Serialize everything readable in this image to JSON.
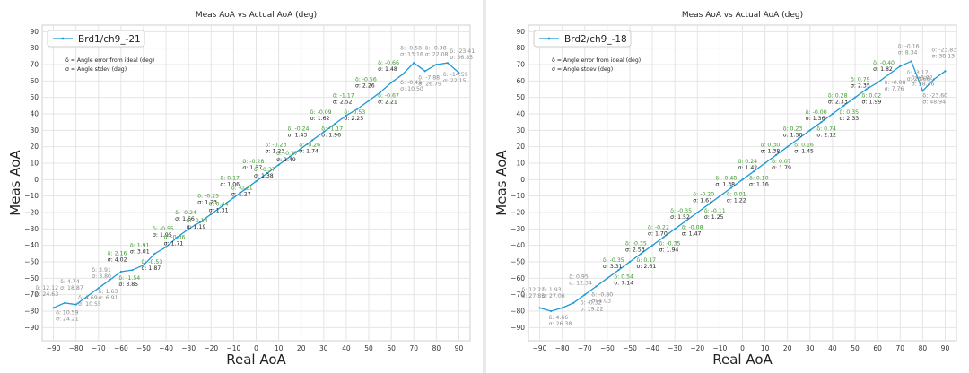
{
  "chart_data": [
    {
      "type": "line",
      "title": "Meas AoA vs Actual AoA (deg)",
      "xlabel": "Real AoA",
      "ylabel": "Meas AoA",
      "xlim": [
        -95,
        95
      ],
      "ylim": [
        -98,
        94
      ],
      "xticks": [
        -90,
        -80,
        -70,
        -60,
        -50,
        -40,
        -30,
        -20,
        -10,
        0,
        10,
        20,
        30,
        40,
        50,
        60,
        70,
        80,
        90
      ],
      "yticks": [
        -90,
        -80,
        -70,
        -60,
        -50,
        -40,
        -30,
        -20,
        -10,
        0,
        10,
        20,
        30,
        40,
        50,
        60,
        70,
        80,
        90
      ],
      "grid": true,
      "legend_position": "top-left",
      "colors": {
        "line": "#1f9ad6",
        "good": "#3a9a2a",
        "warn": "#8a8a8a",
        "ok": "#222222"
      },
      "series": [
        {
          "name": "Brd1/ch9_-21",
          "x": [
            -90,
            -85,
            -80,
            -75,
            -70,
            -65,
            -60,
            -55,
            -50,
            -45,
            -40,
            -35,
            -30,
            -25,
            -20,
            -15,
            -10,
            -5,
            0,
            5,
            10,
            15,
            20,
            25,
            30,
            35,
            40,
            45,
            50,
            55,
            60,
            65,
            70,
            75,
            80,
            85,
            90
          ],
          "y": [
            -78,
            -75,
            -76,
            -71,
            -66,
            -61,
            -56,
            -55,
            -52,
            -45,
            -41,
            -35,
            -30,
            -26,
            -21,
            -16,
            -11,
            -6,
            -1,
            4,
            9,
            14,
            19,
            24,
            29,
            34,
            39,
            43,
            48,
            53,
            59,
            64,
            71,
            66,
            70,
            71,
            65
          ]
        }
      ],
      "legend_notes": [
        "δ = Angle error from ideal (deg)",
        "σ = Angle stdev (deg)"
      ],
      "annotations": [
        {
          "d": "δ: 12.12",
          "s": "σ: 24.63",
          "x": -98,
          "y": -67,
          "c": "warn"
        },
        {
          "d": "δ: 4.74",
          "s": "σ: 18.87",
          "x": -87,
          "y": -63,
          "c": "warn"
        },
        {
          "d": "δ: 10.59",
          "s": "σ: 24.21",
          "x": -89,
          "y": -82,
          "c": "warn"
        },
        {
          "d": "δ: 4.69",
          "s": "σ: 10.55",
          "x": -79,
          "y": -73,
          "c": "warn"
        },
        {
          "d": "δ: 3.91",
          "s": "σ: 3.80",
          "x": -73,
          "y": -56,
          "c": "warn"
        },
        {
          "d": "δ: 1.63",
          "s": "σ: 6.91",
          "x": -70,
          "y": -69,
          "c": "warn"
        },
        {
          "d": "δ: 2.16",
          "s": "σ: 4.02",
          "x": -66,
          "y": -46,
          "c": "good"
        },
        {
          "d": "δ: -1.54",
          "s": "σ: 3.85",
          "x": -61,
          "y": -61,
          "c": "good"
        },
        {
          "d": "δ: 1.91",
          "s": "σ: 3.01",
          "x": -56,
          "y": -41,
          "c": "good"
        },
        {
          "d": "δ: -0.53",
          "s": "σ: 1.87",
          "x": -51,
          "y": -51,
          "c": "good"
        },
        {
          "d": "δ: -0.55",
          "s": "σ: 1.95",
          "x": -46,
          "y": -31,
          "c": "good"
        },
        {
          "d": "δ: -0.36",
          "s": "σ: 1.71",
          "x": -41,
          "y": -36,
          "c": "good"
        },
        {
          "d": "δ: -0.24",
          "s": "σ: 1.66",
          "x": -36,
          "y": -21,
          "c": "good"
        },
        {
          "d": "δ: -0.14",
          "s": "σ: 1.19",
          "x": -31,
          "y": -26,
          "c": "good"
        },
        {
          "d": "δ: -0.25",
          "s": "σ: 1.23",
          "x": -26,
          "y": -11,
          "c": "good"
        },
        {
          "d": "δ: 0.44",
          "s": "σ: 1.31",
          "x": -21,
          "y": -16,
          "c": "good"
        },
        {
          "d": "δ: 0.17",
          "s": "σ: 1.06",
          "x": -16,
          "y": 0,
          "c": "good"
        },
        {
          "d": "δ: -0.21",
          "s": "σ: 1.27",
          "x": -11,
          "y": -6,
          "c": "good"
        },
        {
          "d": "δ: -0.28",
          "s": "σ: 1.37",
          "x": -6,
          "y": 10,
          "c": "good"
        },
        {
          "d": "δ: -0.37",
          "s": "σ: 1.38",
          "x": -1,
          "y": 5,
          "c": "good"
        },
        {
          "d": "δ: -0.23",
          "s": "σ: 1.23",
          "x": 4,
          "y": 20,
          "c": "good"
        },
        {
          "d": "δ: -0.27",
          "s": "σ: 1.49",
          "x": 9,
          "y": 15,
          "c": "good"
        },
        {
          "d": "δ: -0.24",
          "s": "σ: 1.43",
          "x": 14,
          "y": 30,
          "c": "good"
        },
        {
          "d": "δ: -0.26",
          "s": "σ: 1.74",
          "x": 19,
          "y": 20,
          "c": "good"
        },
        {
          "d": "δ: -0.09",
          "s": "σ: 1.62",
          "x": 24,
          "y": 40,
          "c": "good"
        },
        {
          "d": "δ: -1.17",
          "s": "σ: 1.96",
          "x": 29,
          "y": 30,
          "c": "good"
        },
        {
          "d": "δ: -1.17",
          "s": "σ: 2.52",
          "x": 34,
          "y": 50,
          "c": "good"
        },
        {
          "d": "δ: -0.53",
          "s": "σ: 2.25",
          "x": 39,
          "y": 40,
          "c": "good"
        },
        {
          "d": "δ: -0.56",
          "s": "σ: 2.26",
          "x": 44,
          "y": 60,
          "c": "good"
        },
        {
          "d": "δ: -0.67",
          "s": "σ: 2.21",
          "x": 54,
          "y": 50,
          "c": "good"
        },
        {
          "d": "δ: -0.66",
          "s": "σ: 1.48",
          "x": 54,
          "y": 70,
          "c": "good"
        },
        {
          "d": "δ: -0.41",
          "s": "σ: 10.50",
          "x": 64,
          "y": 58,
          "c": "warn"
        },
        {
          "d": "δ: -0.58",
          "s": "σ: 13.16",
          "x": 64,
          "y": 79,
          "c": "warn"
        },
        {
          "d": "δ: -0.38",
          "s": "σ: 22.08",
          "x": 75,
          "y": 79,
          "c": "warn"
        },
        {
          "d": "δ: -7.88",
          "s": "σ: 26.79",
          "x": 72,
          "y": 61,
          "c": "warn"
        },
        {
          "d": "δ: -14.59",
          "s": "σ: 22.15",
          "x": 83,
          "y": 63,
          "c": "warn"
        },
        {
          "d": "δ: -23.41",
          "s": "σ: 36.85",
          "x": 86,
          "y": 77,
          "c": "warn"
        }
      ]
    },
    {
      "type": "line",
      "title": "Meas AoA vs Actual AoA (deg)",
      "xlabel": "Real AoA",
      "ylabel": "Meas AoA",
      "xlim": [
        -95,
        95
      ],
      "ylim": [
        -98,
        94
      ],
      "xticks": [
        -90,
        -80,
        -70,
        -60,
        -50,
        -40,
        -30,
        -20,
        -10,
        0,
        10,
        20,
        30,
        40,
        50,
        60,
        70,
        80,
        90
      ],
      "yticks": [
        -90,
        -80,
        -70,
        -60,
        -50,
        -40,
        -30,
        -20,
        -10,
        0,
        10,
        20,
        30,
        40,
        50,
        60,
        70,
        80,
        90
      ],
      "grid": true,
      "legend_position": "top-left",
      "colors": {
        "line": "#1f9ad6",
        "good": "#3a9a2a",
        "warn": "#8a8a8a",
        "ok": "#222222"
      },
      "series": [
        {
          "name": "Brd2/ch9_-18",
          "x": [
            -90,
            -85,
            -80,
            -75,
            -70,
            -65,
            -60,
            -55,
            -50,
            -45,
            -40,
            -35,
            -30,
            -25,
            -20,
            -15,
            -10,
            -5,
            0,
            5,
            10,
            15,
            20,
            25,
            30,
            35,
            40,
            45,
            50,
            55,
            60,
            65,
            70,
            75,
            80,
            85,
            90
          ],
          "y": [
            -78,
            -80,
            -78,
            -75,
            -70,
            -65,
            -60,
            -55,
            -50,
            -45,
            -40,
            -35,
            -30,
            -25,
            -20,
            -15,
            -10,
            -5,
            0,
            5,
            10,
            15,
            20,
            25,
            30,
            35,
            40,
            45,
            50,
            55,
            59,
            64,
            69,
            72,
            54,
            61,
            66
          ]
        }
      ],
      "legend_notes": [
        "δ = Angle error from ideal (deg)",
        "σ = Angle stdev (deg)"
      ],
      "annotations": [
        {
          "d": "δ: 12.21",
          "s": "σ: 27.85",
          "x": -98,
          "y": -68,
          "c": "warn"
        },
        {
          "d": "δ: 1.93",
          "s": "σ: 27.06",
          "x": -89,
          "y": -68,
          "c": "warn"
        },
        {
          "d": "δ: 4.66",
          "s": "σ: 26.38",
          "x": -86,
          "y": -85,
          "c": "warn"
        },
        {
          "d": "δ: 0.95",
          "s": "σ: 12.34",
          "x": -77,
          "y": -60,
          "c": "warn"
        },
        {
          "d": "δ: -0.32",
          "s": "σ: 19.22",
          "x": -72,
          "y": -76,
          "c": "warn"
        },
        {
          "d": "δ: -0.80",
          "s": "σ: 4.03",
          "x": -67,
          "y": -71,
          "c": "warn"
        },
        {
          "d": "δ: -0.35",
          "s": "σ: 3.31",
          "x": -62,
          "y": -50,
          "c": "good"
        },
        {
          "d": "δ: 0.54",
          "s": "σ: 7.14",
          "x": -57,
          "y": -60,
          "c": "good"
        },
        {
          "d": "δ: -0.35",
          "s": "σ: 2.53",
          "x": -52,
          "y": -40,
          "c": "good"
        },
        {
          "d": "δ: 0.17",
          "s": "σ: 2.61",
          "x": -47,
          "y": -50,
          "c": "good"
        },
        {
          "d": "δ: -0.22",
          "s": "σ: 1.70",
          "x": -42,
          "y": -30,
          "c": "good"
        },
        {
          "d": "δ: -0.35",
          "s": "σ: 1.94",
          "x": -37,
          "y": -40,
          "c": "good"
        },
        {
          "d": "δ: -0.35",
          "s": "σ: 1.52",
          "x": -32,
          "y": -20,
          "c": "good"
        },
        {
          "d": "δ: -0.08",
          "s": "σ: 1.47",
          "x": -27,
          "y": -30,
          "c": "good"
        },
        {
          "d": "δ: -0.20",
          "s": "σ: 1.61",
          "x": -22,
          "y": -10,
          "c": "good"
        },
        {
          "d": "δ: -0.11",
          "s": "σ: 1.25",
          "x": -17,
          "y": -20,
          "c": "good"
        },
        {
          "d": "δ: -0.48",
          "s": "σ: 1.38",
          "x": -12,
          "y": 0,
          "c": "good"
        },
        {
          "d": "δ: 0.01",
          "s": "σ: 1.22",
          "x": -7,
          "y": -10,
          "c": "good"
        },
        {
          "d": "δ: 0.24",
          "s": "σ: 1.42",
          "x": -2,
          "y": 10,
          "c": "good"
        },
        {
          "d": "δ: 0.10",
          "s": "σ: 1.16",
          "x": 3,
          "y": 0,
          "c": "good"
        },
        {
          "d": "δ: 0.30",
          "s": "σ: 1.38",
          "x": 8,
          "y": 20,
          "c": "good"
        },
        {
          "d": "δ: 0.07",
          "s": "σ: 1.79",
          "x": 13,
          "y": 10,
          "c": "good"
        },
        {
          "d": "δ: 0.23",
          "s": "σ: 1.50",
          "x": 18,
          "y": 30,
          "c": "good"
        },
        {
          "d": "δ: 0.16",
          "s": "σ: 1.45",
          "x": 23,
          "y": 20,
          "c": "good"
        },
        {
          "d": "δ: -0.00",
          "s": "σ: 1.36",
          "x": 28,
          "y": 40,
          "c": "good"
        },
        {
          "d": "δ: 0.74",
          "s": "σ: 2.12",
          "x": 33,
          "y": 30,
          "c": "good"
        },
        {
          "d": "δ: 0.28",
          "s": "σ: 2.33",
          "x": 38,
          "y": 50,
          "c": "good"
        },
        {
          "d": "δ: 0.35",
          "s": "σ: 2.33",
          "x": 43,
          "y": 40,
          "c": "good"
        },
        {
          "d": "δ: 0.79",
          "s": "σ: 2.35",
          "x": 48,
          "y": 60,
          "c": "good"
        },
        {
          "d": "δ: 0.02",
          "s": "σ: 1.99",
          "x": 53,
          "y": 50,
          "c": "good"
        },
        {
          "d": "δ: -0.40",
          "s": "σ: 1.82",
          "x": 58,
          "y": 70,
          "c": "good"
        },
        {
          "d": "δ: -0.08",
          "s": "σ: 7.76",
          "x": 63,
          "y": 58,
          "c": "warn"
        },
        {
          "d": "δ: -0.16",
          "s": "σ: 8.34",
          "x": 69,
          "y": 80,
          "c": "warn"
        },
        {
          "d": "δ: -3.17",
          "s": "σ: 28.66",
          "x": 73,
          "y": 64,
          "c": "warn"
        },
        {
          "d": "δ: -8.02",
          "s": "σ: 38.46",
          "x": 75,
          "y": 61,
          "c": "warn"
        },
        {
          "d": "δ: -23.60",
          "s": "σ: 48.94",
          "x": 80,
          "y": 50,
          "c": "warn"
        },
        {
          "d": "δ: -23.83",
          "s": "σ: 38.13",
          "x": 84,
          "y": 78,
          "c": "warn"
        }
      ]
    }
  ]
}
